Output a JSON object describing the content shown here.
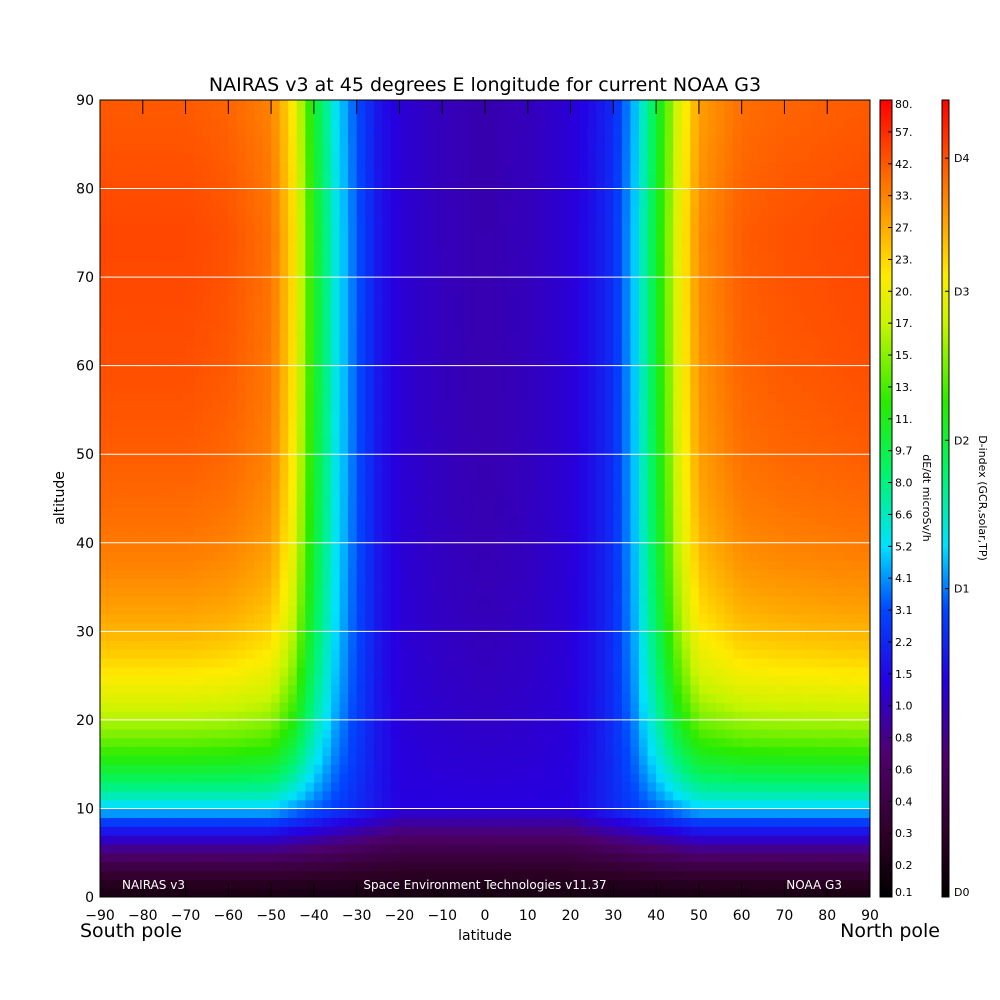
{
  "chart_data": {
    "type": "heatmap",
    "title": "NAIRAS v3 at 45 degrees E longitude for current NOAA G3",
    "xlabel": "latitude",
    "ylabel": "altitude",
    "x_range": [
      -90,
      90
    ],
    "y_range": [
      0,
      90
    ],
    "x_ticks": [
      "-90",
      "-80",
      "-70",
      "-60",
      "-50",
      "-40",
      "-30",
      "-20",
      "-10",
      "0",
      "10",
      "20",
      "30",
      "40",
      "50",
      "60",
      "70",
      "80",
      "90"
    ],
    "y_ticks": [
      "0",
      "10",
      "20",
      "30",
      "40",
      "50",
      "60",
      "70",
      "80",
      "90"
    ],
    "grid": "horizontal lines every 10",
    "x_end_labels": {
      "left": "South pole",
      "right": "North pole"
    },
    "annotations": {
      "left": "NAIRAS v3",
      "center": "Space Environment Technologies v11.37",
      "right": "NOAA G3"
    },
    "colorbar_dose": {
      "label": "dE/dt microSv/h",
      "ticks": [
        "0.1",
        "0.2",
        "0.3",
        "0.4",
        "0.6",
        "0.8",
        "1.0",
        "1.5",
        "2.2",
        "3.1",
        "4.1",
        "5.2",
        "6.6",
        "8.0",
        "9.7",
        "11.",
        "13.",
        "15.",
        "17.",
        "20.",
        "23.",
        "27.",
        "33.",
        "42.",
        "57.",
        "80."
      ]
    },
    "colorbar_dindex": {
      "label": "D-index (GCR,solar,TP)",
      "ticks": [
        "D0",
        "D1",
        "D2",
        "D3",
        "D4"
      ],
      "tick_positions": [
        0,
        0.387,
        0.573,
        0.76,
        0.927
      ]
    },
    "profile": {
      "description_fields": "per-latitude dose profile parameters",
      "latitudes": [
        -90,
        -70,
        -60,
        -50,
        -45,
        -40,
        -35,
        -30,
        -25,
        -20,
        -10,
        0,
        10,
        20,
        25,
        30,
        35,
        40,
        45,
        50,
        60,
        70,
        90
      ],
      "high_altitude_level": [
        0.94,
        0.94,
        0.93,
        0.9,
        0.8,
        0.6,
        0.46,
        0.37,
        0.3,
        0.26,
        0.24,
        0.23,
        0.24,
        0.26,
        0.29,
        0.33,
        0.43,
        0.58,
        0.75,
        0.87,
        0.92,
        0.93,
        0.94
      ]
    }
  }
}
